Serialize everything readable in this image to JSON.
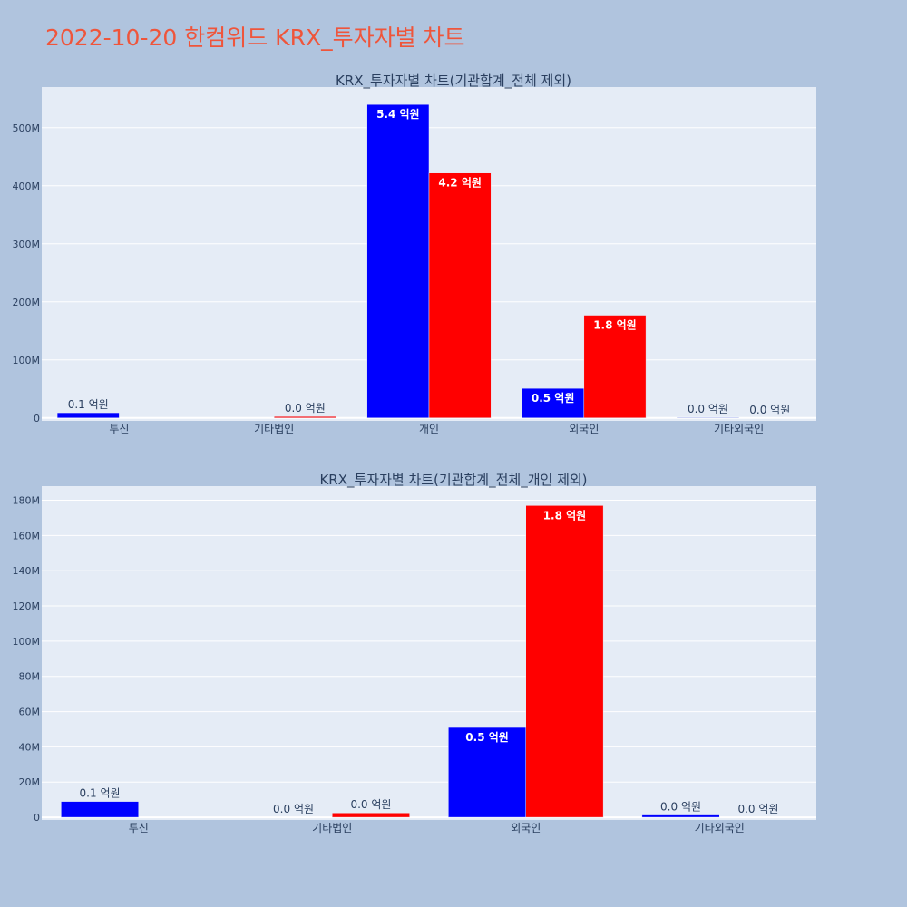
{
  "page_title": "2022-10-20 한컴위드 KRX_투자자별 차트",
  "colors": {
    "buy": "#0000ff",
    "sell": "#ff0000",
    "plot_bg": "#e5ecf6",
    "page_bg": "#b0c4de",
    "title": "#ef553b",
    "text": "#2a3f5f"
  },
  "chart_data": [
    {
      "type": "bar",
      "title": "KRX_투자자별 차트(기관합계_전체 제외)",
      "categories": [
        "투신",
        "기타법인",
        "개인",
        "외국인",
        "기타외국인"
      ],
      "series": [
        {
          "color": "#0000ff",
          "values": [
            9000000,
            0,
            540000000,
            51000000,
            1000000
          ],
          "labels": [
            "0.1 억원",
            "",
            "5.4 억원",
            "0.5 억원",
            "0.0 억원"
          ]
        },
        {
          "color": "#ff0000",
          "values": [
            0,
            2500000,
            422000000,
            177000000,
            0
          ],
          "labels": [
            "",
            "0.0 억원",
            "4.2 억원",
            "1.8 억원",
            "0.0 억원"
          ]
        }
      ],
      "ylim": [
        -5000000,
        570000000
      ],
      "yticks": [
        0,
        100000000,
        200000000,
        300000000,
        400000000,
        500000000
      ],
      "ytick_labels": [
        "0",
        "100M",
        "200M",
        "300M",
        "400M",
        "500M"
      ],
      "grid": true
    },
    {
      "type": "bar",
      "title": "KRX_투자자별 차트(기관합계_전체_개인 제외)",
      "categories": [
        "투신",
        "기타법인",
        "외국인",
        "기타외국인"
      ],
      "series": [
        {
          "color": "#0000ff",
          "values": [
            9000000,
            0,
            51000000,
            1300000
          ],
          "labels": [
            "0.1 억원",
            "0.0 억원",
            "0.5 억원",
            "0.0 억원"
          ]
        },
        {
          "color": "#ff0000",
          "values": [
            0,
            2500000,
            177000000,
            0
          ],
          "labels": [
            "",
            "0.0 억원",
            "1.8 억원",
            "0.0 억원"
          ]
        }
      ],
      "ylim": [
        -1500000,
        188000000
      ],
      "yticks": [
        0,
        20000000,
        40000000,
        60000000,
        80000000,
        100000000,
        120000000,
        140000000,
        160000000,
        180000000
      ],
      "ytick_labels": [
        "0",
        "20M",
        "40M",
        "60M",
        "80M",
        "100M",
        "120M",
        "140M",
        "160M",
        "180M"
      ],
      "grid": true
    }
  ]
}
